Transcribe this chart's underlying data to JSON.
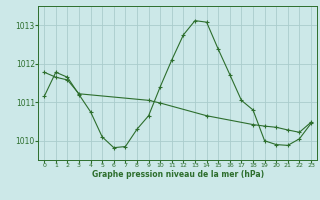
{
  "title": "Graphe pression niveau de la mer (hPa)",
  "bg_color": "#cce8e8",
  "grid_color": "#aacccc",
  "line_color": "#2d6e2d",
  "xlim": [
    -0.5,
    23.5
  ],
  "ylim": [
    1009.5,
    1013.5
  ],
  "yticks": [
    1010,
    1011,
    1012,
    1013
  ],
  "xticks": [
    0,
    1,
    2,
    3,
    4,
    5,
    6,
    7,
    8,
    9,
    10,
    11,
    12,
    13,
    14,
    15,
    16,
    17,
    18,
    19,
    20,
    21,
    22,
    23
  ],
  "curve1_x": [
    0,
    1,
    2,
    3,
    4,
    5,
    6,
    7,
    8,
    9,
    10,
    11,
    12,
    13,
    14,
    15,
    16,
    17,
    18,
    19,
    20,
    21,
    22,
    23
  ],
  "curve1_y": [
    1011.15,
    1011.78,
    1011.65,
    1011.2,
    1010.75,
    1010.1,
    1009.82,
    1009.85,
    1010.3,
    1010.65,
    1011.4,
    1012.1,
    1012.75,
    1013.12,
    1013.08,
    1012.38,
    1011.72,
    1011.05,
    1010.8,
    1010.0,
    1009.9,
    1009.88,
    1010.05,
    1010.45
  ],
  "curve2_x": [
    0,
    1,
    2,
    3,
    9,
    10,
    14,
    18,
    19,
    20,
    21,
    22,
    23
  ],
  "curve2_y": [
    1011.78,
    1011.65,
    1011.58,
    1011.22,
    1011.05,
    1010.98,
    1010.65,
    1010.42,
    1010.38,
    1010.35,
    1010.28,
    1010.22,
    1010.48
  ]
}
